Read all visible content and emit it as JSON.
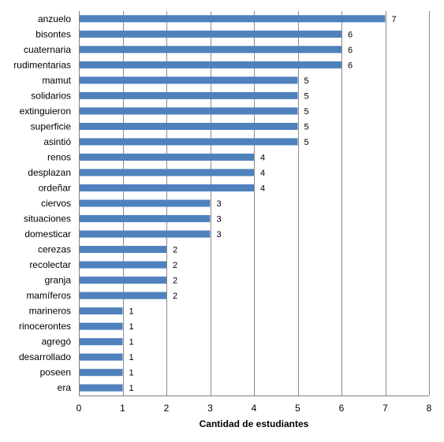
{
  "chart_data": {
    "type": "bar",
    "orientation": "horizontal",
    "categories": [
      "anzuelo",
      "bisontes",
      "cuaternaria",
      "rudimentarias",
      "mamut",
      "solidarios",
      "extinguieron",
      "superficie",
      "asintió",
      "renos",
      "desplazan",
      "ordeñar",
      "ciervos",
      "situaciones",
      "domesticar",
      "cerezas",
      "recolectar",
      "granja",
      "mamíferos",
      "marineros",
      "rinocerontes",
      "agregó",
      "desarrollado",
      "poseen",
      "era"
    ],
    "values": [
      7,
      6,
      6,
      6,
      5,
      5,
      5,
      5,
      5,
      4,
      4,
      4,
      3,
      3,
      3,
      2,
      2,
      2,
      2,
      1,
      1,
      1,
      1,
      1,
      1
    ],
    "title": "",
    "xlabel": "Cantidad de estudiantes",
    "ylabel": "",
    "xlim": [
      0,
      8
    ],
    "xticks": [
      "0",
      "1",
      "2",
      "3",
      "4",
      "5",
      "6",
      "7",
      "8"
    ],
    "grid": "vertical",
    "legend": "none",
    "bar_color": "#4f81bd",
    "grid_color": "#8c8c8c"
  }
}
